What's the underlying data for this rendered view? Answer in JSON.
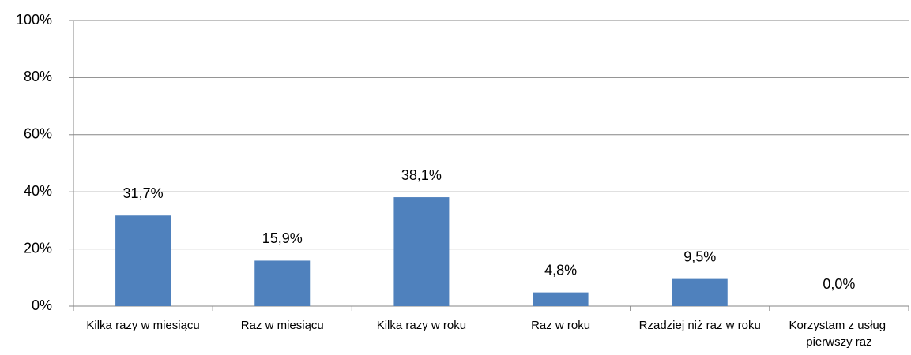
{
  "chart_data": {
    "type": "bar",
    "categories": [
      "Kilka razy w miesiącu",
      "Raz w miesiącu",
      "Kilka razy w roku",
      "Raz w roku",
      "Rzadziej niż raz w roku",
      "Korzystam z usług pierwszy raz"
    ],
    "values": [
      31.7,
      15.9,
      38.1,
      4.8,
      9.5,
      0.0
    ],
    "value_labels": [
      "31,7%",
      "15,9%",
      "38,1%",
      "4,8%",
      "9,5%",
      "0,0%"
    ],
    "color": "#4f81bd",
    "ylim": [
      0,
      100
    ],
    "yticks": [
      {
        "value": 0,
        "label": "0%"
      },
      {
        "value": 20,
        "label": "20%"
      },
      {
        "value": 40,
        "label": "40%"
      },
      {
        "value": 60,
        "label": "60%"
      },
      {
        "value": 80,
        "label": "80%"
      },
      {
        "value": 100,
        "label": "100%"
      }
    ],
    "grid": true
  }
}
